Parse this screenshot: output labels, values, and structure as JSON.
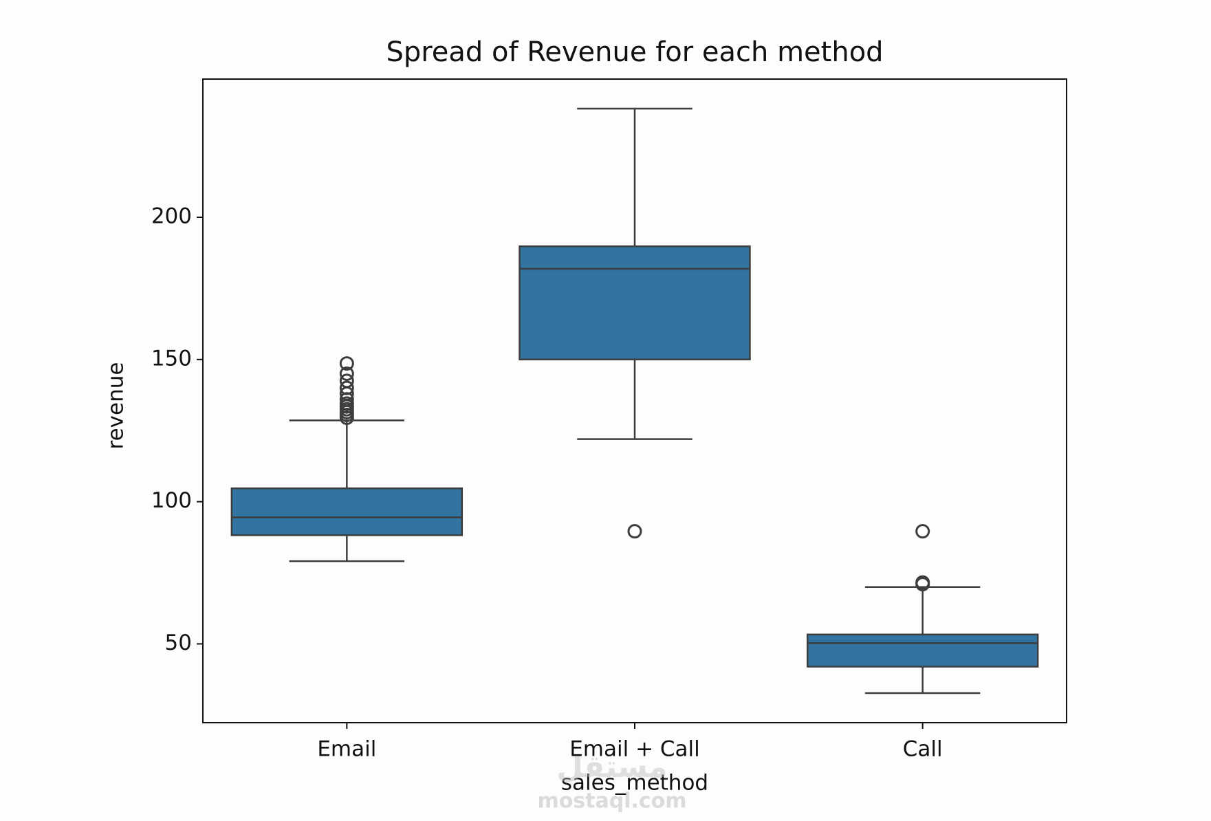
{
  "chart_data": {
    "type": "box",
    "title": "Spread of Revenue for each method",
    "x_label": "sales_method",
    "y_label": "revenue",
    "categories": [
      "Email",
      "Email + Call",
      "Call"
    ],
    "color": "#3274a1",
    "boxes": [
      {
        "min": 79.1,
        "q1": 88.2,
        "median": 94.5,
        "q3": 104.7,
        "max": 128.6,
        "outliers": [
          129.5,
          130.5,
          131.5,
          132.5,
          133.5,
          134.5,
          136,
          138,
          140,
          142.5,
          145,
          148.6
        ]
      },
      {
        "min": 122,
        "q1": 150,
        "median": 181.9,
        "q3": 189.8,
        "max": 238.2,
        "outliers": [
          89.6
        ]
      },
      {
        "min": 32.7,
        "q1": 42,
        "median": 50.3,
        "q3": 53.3,
        "max": 70,
        "outliers": [
          71,
          71.6,
          89.6
        ]
      }
    ],
    "ylim": [
      22.3,
      248.6
    ],
    "yticks": [
      50,
      100,
      150,
      200
    ],
    "watermark": [
      "مستقل",
      "mostaql.com"
    ]
  }
}
